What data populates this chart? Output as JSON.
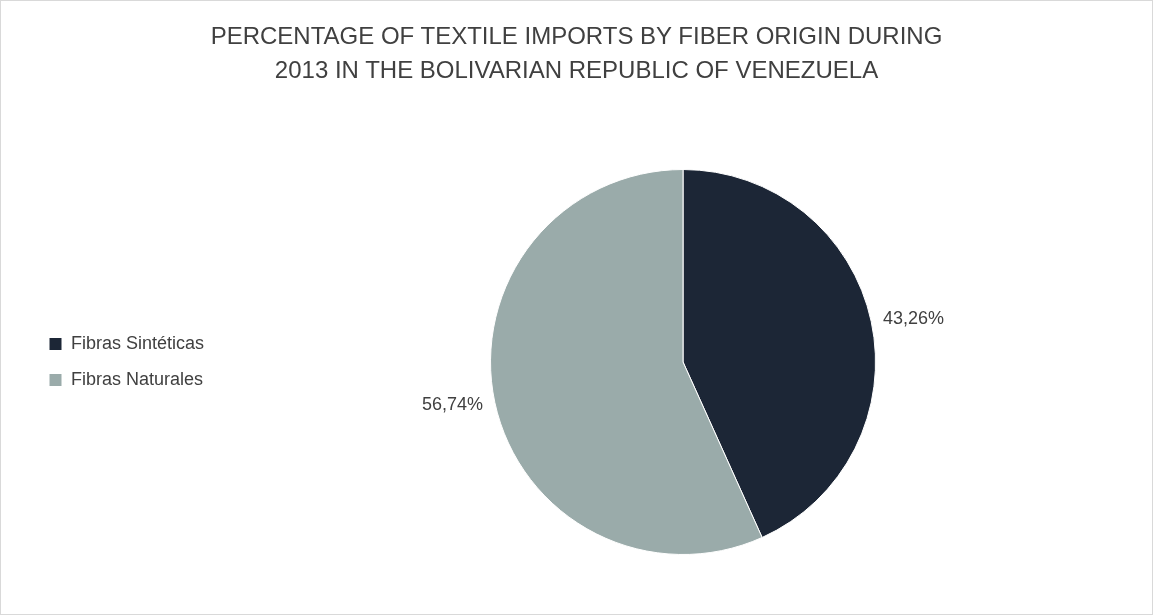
{
  "chart_data": {
    "type": "pie",
    "title": "PERCENTAGE OF TEXTILE IMPORTS BY FIBER ORIGIN DURING 2013 IN THE BOLIVARIAN REPUBLIC OF VENEZUELA",
    "categories": [
      "Fibras Sintéticas",
      "Fibras Naturales"
    ],
    "values": [
      43.26,
      56.74
    ],
    "colors": [
      "#1c2636",
      "#9aabaa"
    ],
    "value_labels": [
      "43,26%",
      "56,74%"
    ],
    "legend": "left"
  }
}
